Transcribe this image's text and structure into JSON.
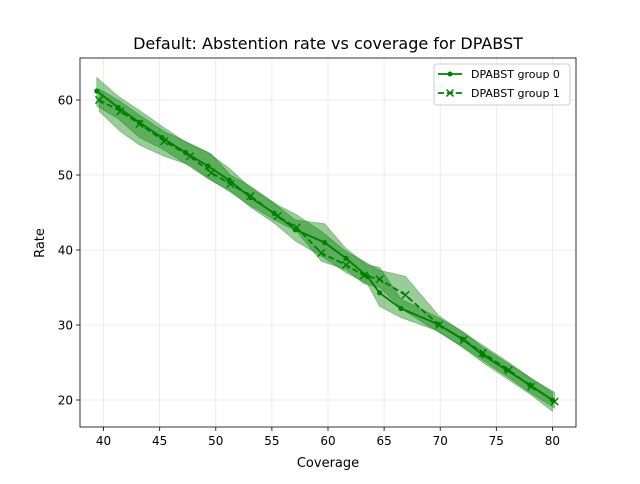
{
  "chart_data": {
    "type": "line",
    "title": "Default: Abstention rate vs coverage for DPABST",
    "xlabel": "Coverage",
    "ylabel": "Rate",
    "xlim": [
      37.9,
      82.1
    ],
    "ylim": [
      16.4,
      65.6
    ],
    "xticks": [
      40,
      45,
      50,
      55,
      60,
      65,
      70,
      75,
      80
    ],
    "yticks": [
      20,
      30,
      40,
      50,
      60
    ],
    "grid": true,
    "legend_position": "upper right",
    "series": [
      {
        "name": "DPABST group 0",
        "color": "#008000",
        "linestyle": "solid",
        "marker": "dot",
        "x": [
          39.4,
          41.3,
          43.2,
          45.2,
          47.3,
          49.3,
          51.2,
          53.1,
          55.2,
          57.1,
          59.7,
          61.6,
          63.5,
          64.6,
          66.5,
          69.8,
          72.0,
          73.8,
          75.9,
          78.0,
          80.0
        ],
        "y": [
          61.2,
          59.0,
          57.0,
          55.0,
          53.0,
          51.2,
          49.3,
          47.0,
          44.9,
          42.7,
          41.0,
          38.9,
          36.5,
          34.3,
          32.2,
          30.1,
          28.1,
          26.0,
          24.0,
          22.0,
          20.0
        ],
        "band_upper": [
          63.0,
          60.5,
          58.6,
          56.5,
          54.4,
          53.0,
          50.9,
          48.3,
          46.2,
          44.0,
          43.5,
          40.2,
          38.0,
          37.7,
          33.5,
          31.0,
          29.1,
          27.0,
          25.0,
          23.0,
          21.0
        ],
        "band_lower": [
          59.2,
          57.5,
          55.0,
          53.5,
          51.5,
          49.5,
          48.0,
          45.7,
          43.6,
          41.2,
          38.9,
          37.0,
          35.5,
          32.5,
          31.0,
          29.2,
          27.0,
          25.0,
          22.9,
          20.8,
          18.5
        ]
      },
      {
        "name": "DPABST group 1",
        "color": "#008000",
        "linestyle": "dashed",
        "marker": "x",
        "x": [
          39.6,
          41.5,
          43.2,
          45.4,
          47.7,
          49.6,
          51.3,
          53.1,
          55.5,
          57.2,
          59.4,
          61.6,
          63.2,
          64.6,
          66.9,
          69.9,
          72.1,
          73.8,
          76.1,
          78.1,
          80.2
        ],
        "y": [
          60.0,
          58.5,
          56.8,
          54.5,
          52.5,
          50.3,
          48.8,
          47.2,
          44.5,
          43.0,
          39.6,
          38.0,
          36.6,
          36.1,
          34.0,
          30.0,
          28.0,
          26.3,
          24.0,
          21.8,
          19.8
        ],
        "band_upper": [
          61.5,
          59.8,
          58.0,
          55.8,
          54.2,
          52.8,
          50.0,
          48.5,
          46.0,
          44.7,
          42.5,
          39.8,
          38.5,
          37.3,
          36.5,
          31.2,
          29.0,
          27.3,
          25.0,
          22.9,
          21.0
        ],
        "band_lower": [
          58.5,
          55.8,
          54.0,
          52.5,
          51.3,
          49.3,
          47.7,
          45.9,
          43.8,
          42.5,
          38.5,
          37.4,
          35.5,
          35.0,
          31.8,
          29.0,
          27.0,
          25.3,
          23.0,
          20.9,
          18.9
        ]
      }
    ]
  }
}
